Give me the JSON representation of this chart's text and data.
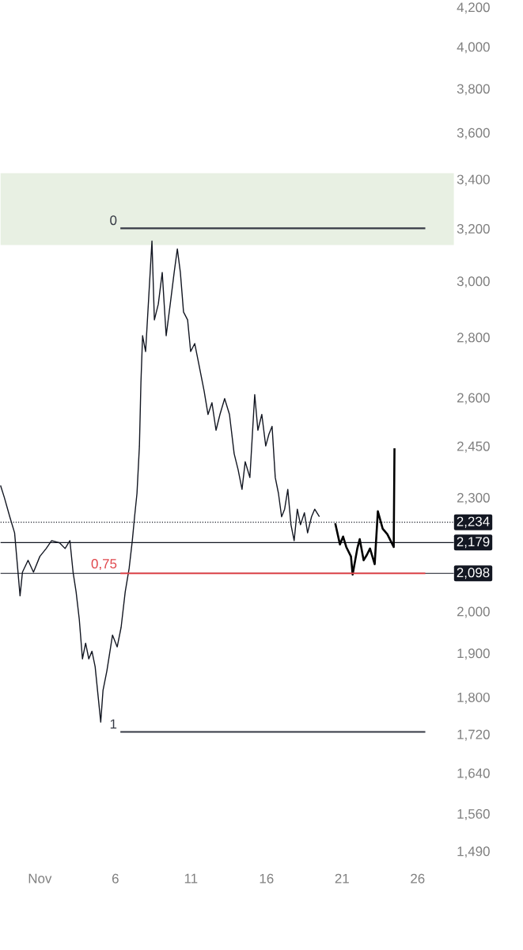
{
  "chart_data": {
    "type": "line",
    "log": "y",
    "marker": "none",
    "xlim": [
      -1.6,
      28.4
    ],
    "ylim": [
      1490,
      4200
    ],
    "xticks": [
      {
        "value": 1,
        "label": "Nov"
      },
      6,
      11,
      16,
      21,
      26
    ],
    "yticks": [
      {
        "value": 1490,
        "label": "1,490"
      },
      {
        "value": 1560,
        "label": "1,560"
      },
      {
        "value": 1640,
        "label": "1,640"
      },
      {
        "value": 1720,
        "label": "1,720"
      },
      {
        "value": 1800,
        "label": "1,800"
      },
      {
        "value": 1900,
        "label": "1,900"
      },
      {
        "value": 2000,
        "label": "2,000"
      },
      {
        "value": 2300,
        "label": "2,300"
      },
      {
        "value": 2450,
        "label": "2,450"
      },
      {
        "value": 2600,
        "label": "2,600"
      },
      {
        "value": 2800,
        "label": "2,800"
      },
      {
        "value": 3000,
        "label": "3,000"
      },
      {
        "value": 3200,
        "label": "3,200"
      },
      {
        "value": 3400,
        "label": "3,400"
      },
      {
        "value": 3600,
        "label": "3,600"
      },
      {
        "value": 3800,
        "label": "3,800"
      },
      {
        "value": 4000,
        "label": "4,000"
      },
      {
        "value": 4200,
        "label": "4,200"
      }
    ],
    "bands": [
      {
        "axis": "y",
        "from": 3140,
        "to": 3430,
        "color": "#e8f0e3"
      }
    ],
    "ref_lines": [
      {
        "axis": "y",
        "value": 2234,
        "label": "2,234",
        "line_style": "dotted",
        "color": "#131722"
      },
      {
        "axis": "y",
        "value": 2179,
        "label": "2,179",
        "line_style": "solid",
        "color": "#131722"
      },
      {
        "axis": "y",
        "value": 2098,
        "label": "2,098",
        "line_style": "solid",
        "color": "#131722"
      }
    ],
    "series": [
      {
        "color": "#131722",
        "x": [
          -1.6,
          -1.35,
          -0.99,
          -0.67,
          -0.31,
          -0.15,
          0.22,
          0.58,
          1.0,
          1.42,
          1.78,
          2.31,
          2.67,
          2.99,
          3.2,
          3.4,
          3.61,
          3.82,
          4.03,
          4.24,
          4.45,
          4.66,
          4.87,
          5.03,
          5.18,
          5.44,
          5.81,
          6.12,
          6.38,
          6.65,
          6.91,
          7.12,
          7.27,
          7.43,
          7.59,
          7.69,
          7.8,
          8.0,
          8.21,
          8.42,
          8.58,
          8.84,
          9.1,
          9.36,
          9.63,
          9.89,
          10.1,
          10.3,
          10.51,
          10.78,
          10.98,
          11.25,
          11.56,
          11.87,
          12.13,
          12.39,
          12.66,
          12.92,
          13.23,
          13.55,
          13.86,
          14.12,
          14.38,
          14.59,
          14.9,
          15.22,
          15.43,
          15.69,
          15.95,
          16.16,
          16.37,
          16.58,
          16.79,
          17.0,
          17.2,
          17.41,
          17.62,
          17.83,
          18.04,
          18.25,
          18.51,
          18.72,
          18.98,
          19.19,
          19.5
        ],
        "values": [
          2337,
          2303,
          2249,
          2205,
          2041,
          2101,
          2132,
          2101,
          2142,
          2163,
          2184,
          2178,
          2163,
          2184,
          2101,
          2051,
          1983,
          1889,
          1926,
          1889,
          1907,
          1871,
          1800,
          1748,
          1817,
          1862,
          1945,
          1917,
          1964,
          2051,
          2111,
          2184,
          2249,
          2315,
          2453,
          2651,
          2809,
          2755,
          2948,
          3155,
          2864,
          2920,
          3036,
          2809,
          2920,
          3036,
          3125,
          3036,
          2892,
          2864,
          2755,
          2782,
          2703,
          2625,
          2550,
          2587,
          2501,
          2550,
          2600,
          2550,
          2430,
          2383,
          2326,
          2406,
          2360,
          2613,
          2501,
          2550,
          2453,
          2489,
          2513,
          2360,
          2315,
          2249,
          2270,
          2326,
          2227,
          2184,
          2270,
          2227,
          2260,
          2205,
          2249,
          2270,
          2249
        ]
      },
      {
        "color": "#000000",
        "x": [
          20.55,
          20.86,
          21.07,
          21.28,
          21.59,
          21.7,
          22.01,
          22.17,
          22.43,
          22.64,
          22.85,
          23.16,
          23.37,
          23.69,
          24.0,
          24.21,
          24.42,
          24.47
        ],
        "values": [
          2231,
          2174,
          2195,
          2167,
          2142,
          2095,
          2163,
          2188,
          2132,
          2146,
          2163,
          2122,
          2264,
          2216,
          2201,
          2184,
          2167,
          2446
        ]
      },
      {
        "name": "0",
        "color": "#363a45",
        "x": [
          6.33,
          26.51
        ],
        "values": [
          3205,
          3205
        ]
      },
      {
        "name": "0,75",
        "color": "#e0474c",
        "x": [
          6.33,
          26.51
        ],
        "values": [
          2098,
          2098
        ]
      },
      {
        "name": "1",
        "color": "#363a45",
        "x": [
          6.33,
          26.51
        ],
        "values": [
          1727,
          1727
        ]
      }
    ]
  }
}
